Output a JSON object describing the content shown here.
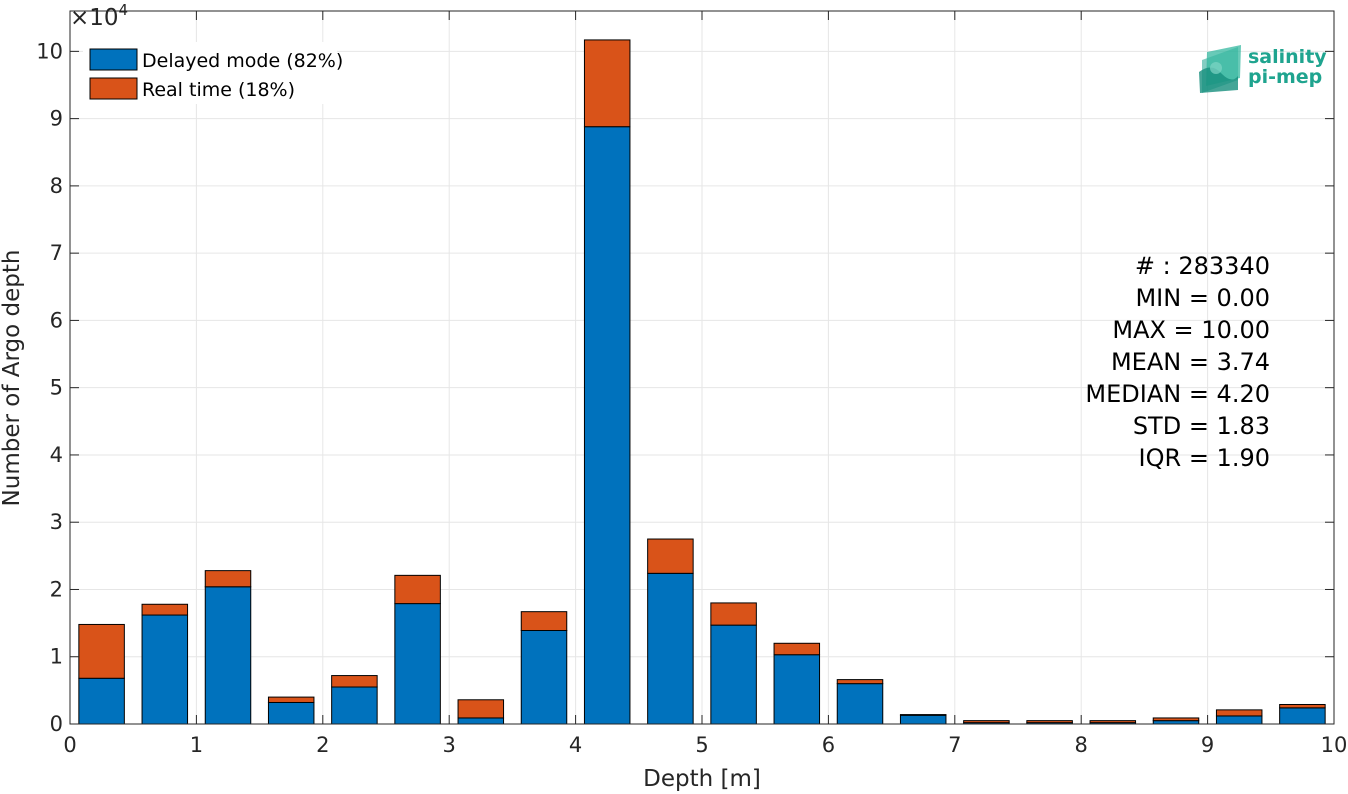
{
  "chart_data": {
    "type": "bar",
    "stacked": true,
    "bin_edges": [
      0,
      0.5,
      1,
      1.5,
      2,
      2.5,
      3,
      3.5,
      4,
      4.5,
      5,
      5.5,
      6,
      6.5,
      7,
      7.5,
      8,
      8.5,
      9,
      9.5,
      10
    ],
    "series": [
      {
        "name": "Delayed mode (82%)",
        "color": "#0072bd",
        "values": [
          6800,
          16200,
          20400,
          3200,
          5500,
          17900,
          900,
          13900,
          88800,
          22400,
          14700,
          10300,
          6000,
          1300,
          200,
          200,
          200,
          500,
          1200,
          2400
        ]
      },
      {
        "name": "Real time (18%)",
        "color": "#d95319",
        "values": [
          8000,
          1600,
          2400,
          800,
          1700,
          4200,
          2700,
          2800,
          12900,
          5100,
          3300,
          1700,
          600,
          100,
          300,
          300,
          300,
          400,
          900,
          500
        ]
      }
    ],
    "xlabel": "Depth [m]",
    "ylabel": "Number of Argo depth",
    "y_exponent_label": "×10",
    "y_exponent_power": "4",
    "xlim": [
      0,
      10
    ],
    "ylim": [
      0,
      106000
    ],
    "x_ticks": [
      "0",
      "1",
      "2",
      "3",
      "4",
      "5",
      "6",
      "7",
      "8",
      "9",
      "10"
    ],
    "y_ticks": [
      "0",
      "1",
      "2",
      "3",
      "4",
      "5",
      "6",
      "7",
      "8",
      "9",
      "10"
    ],
    "grid": true,
    "legend_position": "top-left",
    "annotations": [
      "# : 283340",
      "MIN = 0.00",
      "MAX =  10.00",
      "MEAN = 3.74",
      "MEDIAN = 4.20",
      "STD = 1.83",
      "IQR = 1.90"
    ]
  },
  "logo": {
    "line1": "salinity",
    "line2": "pi-mep",
    "icon": "salinity-pimep-logo-icon",
    "color": "#1fa48f"
  }
}
